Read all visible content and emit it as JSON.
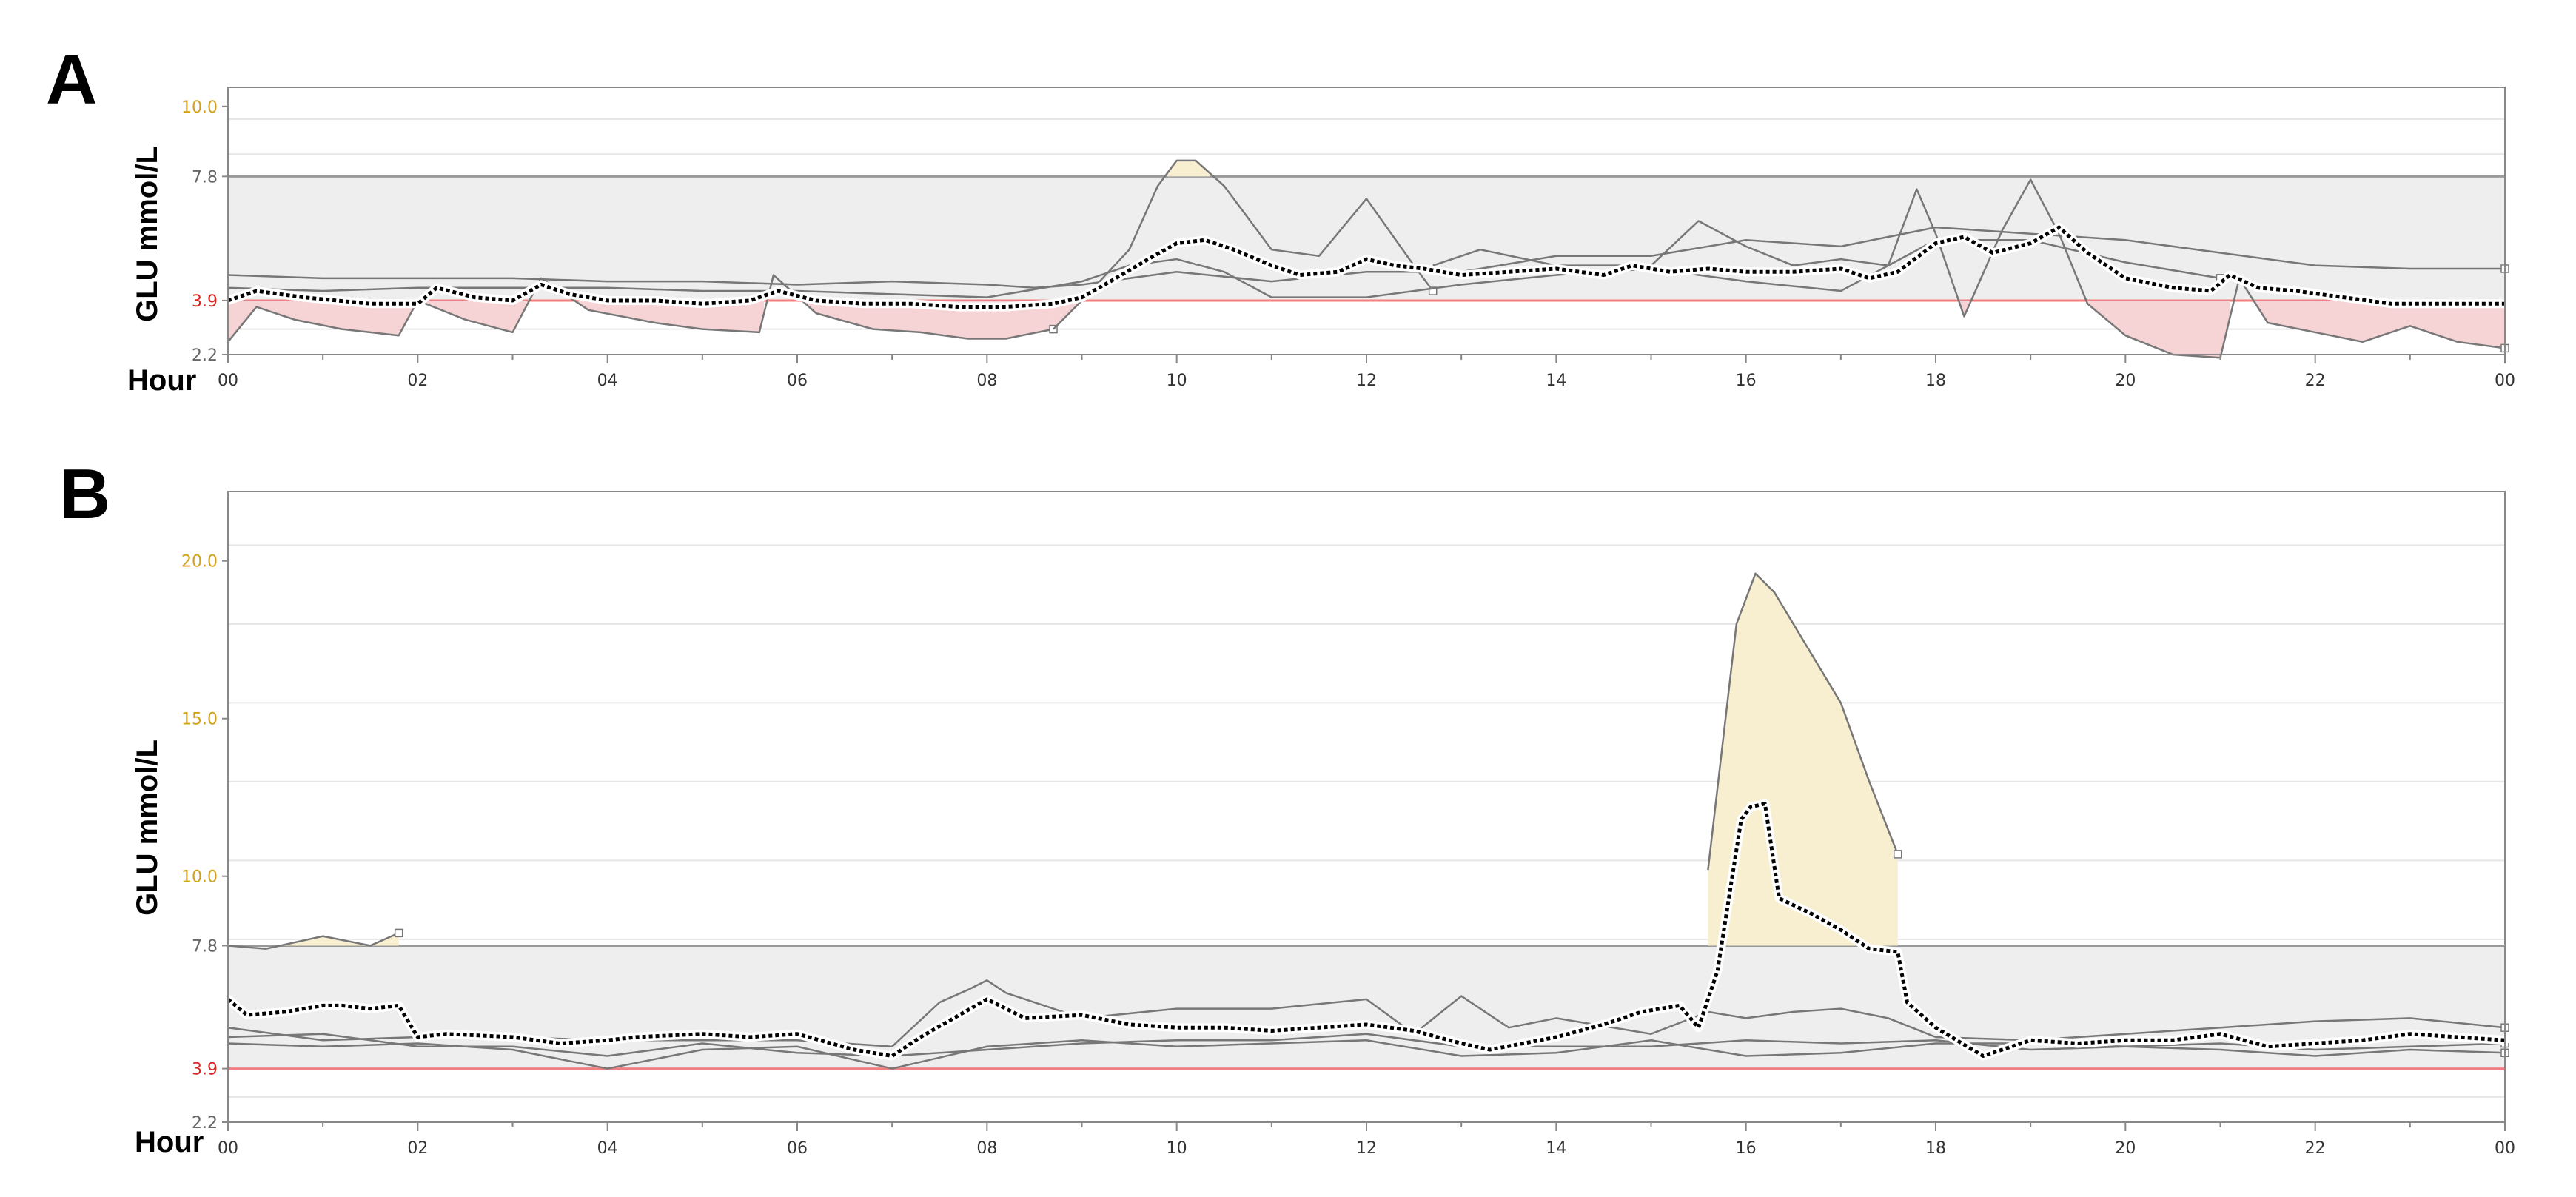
{
  "panels": [
    {
      "letter": "A",
      "ylabel": "GLU mmol/L",
      "xlabel": "Hour"
    },
    {
      "letter": "B",
      "ylabel": "GLU mmol/L",
      "xlabel": "Hour"
    }
  ],
  "colors": {
    "target_band": "#eeeeee",
    "target_line": "#999999",
    "low_line": "#f08080",
    "low_fill": "#f6d3d5",
    "high_fill": "#f8eed0",
    "high_outline": "#c8a96a",
    "high_tick_label": "#d4a017",
    "low_tick_label": "#dd2222",
    "trace": "#777777",
    "median": "#000000",
    "grid": "#e6e6e6"
  },
  "chart_data": [
    {
      "type": "line",
      "title": "",
      "xlabel": "Hour",
      "ylabel": "GLU mmol/L",
      "x_tick_labels": [
        "00",
        "02",
        "04",
        "06",
        "08",
        "10",
        "12",
        "14",
        "16",
        "18",
        "20",
        "22",
        "00"
      ],
      "x_range_hours": [
        0,
        24
      ],
      "y_ticks": [
        2.2,
        3.9,
        7.8,
        10.0
      ],
      "y_tick_colors": [
        "normal",
        "low",
        "normal",
        "high"
      ],
      "ylim": [
        2.2,
        10.6
      ],
      "target_range": [
        3.9,
        7.8
      ],
      "series": [
        {
          "role": "trace",
          "x": [
            0,
            0.3,
            0.7,
            1.2,
            1.8,
            2.0,
            2.5,
            3.0,
            3.3,
            3.8,
            4.5,
            5.0,
            5.6,
            5.75,
            6.2,
            6.8,
            7.3,
            7.8,
            8.2,
            8.7
          ],
          "y": [
            2.6,
            3.7,
            3.3,
            3.0,
            2.8,
            3.9,
            3.3,
            2.9,
            4.6,
            3.6,
            3.2,
            3.0,
            2.9,
            4.7,
            3.5,
            3.0,
            2.9,
            2.7,
            2.7,
            3.0
          ]
        },
        {
          "role": "trace",
          "x": [
            8.7,
            9.0,
            9.5,
            9.8,
            10.0,
            10.2,
            10.5,
            11.0,
            11.5,
            12.0,
            12.5,
            12.7
          ],
          "y": [
            3.0,
            3.9,
            5.5,
            7.5,
            8.3,
            8.3,
            7.5,
            5.5,
            5.3,
            7.1,
            5.0,
            4.2
          ]
        },
        {
          "role": "trace",
          "x": [
            12.7,
            13.2,
            14.0,
            15.0,
            15.5,
            16.0,
            16.5,
            17.0,
            17.5,
            17.8,
            18.0,
            18.3,
            18.7,
            19.0,
            19.3,
            19.6,
            20.0,
            20.5,
            21.0,
            21.2,
            21.5,
            22.0,
            22.5,
            23.0,
            23.5,
            24.0
          ],
          "y": [
            5.0,
            5.5,
            5.0,
            5.0,
            6.4,
            5.6,
            5.0,
            5.2,
            5.0,
            7.4,
            6.0,
            3.4,
            6.1,
            7.7,
            6.0,
            3.8,
            2.8,
            2.2,
            2.1,
            4.6,
            3.2,
            2.9,
            2.6,
            3.1,
            2.6,
            2.4
          ]
        },
        {
          "role": "trace",
          "x": [
            0,
            1.0,
            2.0,
            3.0,
            4.0,
            5.0,
            6.0,
            7.0,
            8.0,
            8.5,
            9.0,
            10.0,
            11.0,
            12.0,
            13.0,
            14.0,
            15.0,
            16.0,
            17.0,
            18.0,
            19.0,
            20.0,
            21.0,
            22.0,
            23.0,
            24.0
          ],
          "y": [
            4.7,
            4.6,
            4.6,
            4.6,
            4.5,
            4.5,
            4.4,
            4.5,
            4.4,
            4.3,
            4.4,
            4.8,
            4.5,
            4.8,
            4.8,
            5.3,
            5.3,
            5.8,
            5.6,
            6.2,
            6.0,
            5.8,
            5.4,
            5.0,
            4.9,
            4.9
          ]
        },
        {
          "role": "trace",
          "x": [
            0,
            1.0,
            2.0,
            3.0,
            4.0,
            5.0,
            6.0,
            7.0,
            8.0,
            9.0,
            9.5,
            10.0,
            10.5,
            11.0,
            12.0,
            13.0,
            14.0,
            15.0,
            16.0,
            17.0,
            18.0,
            19.0,
            20.0,
            21.0
          ],
          "y": [
            4.3,
            4.2,
            4.3,
            4.3,
            4.3,
            4.2,
            4.2,
            4.1,
            4.0,
            4.5,
            5.0,
            5.2,
            4.8,
            4.0,
            4.0,
            4.4,
            4.7,
            4.9,
            4.5,
            4.2,
            5.8,
            5.8,
            5.1,
            4.6
          ]
        },
        {
          "role": "median",
          "x": [
            0,
            0.3,
            0.8,
            1.5,
            2.0,
            2.2,
            2.6,
            3.0,
            3.3,
            3.6,
            4.0,
            4.5,
            5.0,
            5.5,
            5.8,
            6.2,
            6.7,
            7.2,
            7.7,
            8.2,
            8.7,
            9.0,
            9.3,
            9.7,
            10.0,
            10.3,
            10.6,
            11.0,
            11.3,
            11.7,
            12.0,
            12.3,
            12.6,
            13.0,
            13.5,
            14.0,
            14.5,
            14.8,
            15.2,
            15.6,
            16.0,
            16.5,
            17.0,
            17.3,
            17.6,
            18.0,
            18.3,
            18.6,
            19.0,
            19.3,
            19.6,
            20.0,
            20.5,
            20.9,
            21.1,
            21.4,
            21.8,
            22.3,
            22.8,
            23.2,
            23.6,
            24.0
          ],
          "y": [
            3.9,
            4.2,
            4.0,
            3.8,
            3.8,
            4.3,
            4.0,
            3.9,
            4.4,
            4.1,
            3.9,
            3.9,
            3.8,
            3.9,
            4.2,
            3.9,
            3.8,
            3.8,
            3.7,
            3.7,
            3.8,
            4.0,
            4.5,
            5.2,
            5.7,
            5.8,
            5.5,
            5.0,
            4.7,
            4.8,
            5.2,
            5.0,
            4.9,
            4.7,
            4.8,
            4.9,
            4.7,
            5.0,
            4.8,
            4.9,
            4.8,
            4.8,
            4.9,
            4.6,
            4.8,
            5.7,
            5.9,
            5.4,
            5.7,
            6.2,
            5.4,
            4.6,
            4.3,
            4.2,
            4.7,
            4.3,
            4.2,
            4.0,
            3.8,
            3.8,
            3.8,
            3.8
          ]
        }
      ]
    },
    {
      "type": "line",
      "title": "",
      "xlabel": "Hour",
      "ylabel": "GLU mmol/L",
      "x_tick_labels": [
        "00",
        "02",
        "04",
        "06",
        "08",
        "10",
        "12",
        "14",
        "16",
        "18",
        "20",
        "22",
        "00"
      ],
      "x_range_hours": [
        0,
        24
      ],
      "y_ticks": [
        2.2,
        3.9,
        7.8,
        10.0,
        15.0,
        20.0
      ],
      "y_tick_colors": [
        "normal",
        "low",
        "normal",
        "high",
        "high",
        "high"
      ],
      "ylim": [
        2.2,
        22.2
      ],
      "target_range": [
        3.9,
        7.8
      ],
      "series": [
        {
          "role": "trace",
          "x": [
            0,
            0.4,
            1.0,
            1.5,
            1.8
          ],
          "y": [
            7.8,
            7.7,
            8.1,
            7.8,
            8.2
          ]
        },
        {
          "role": "trace",
          "x": [
            15.6,
            15.9,
            16.1,
            16.3,
            16.6,
            17.0,
            17.3,
            17.6
          ],
          "y": [
            10.2,
            18.0,
            19.6,
            19.0,
            17.5,
            15.5,
            13.0,
            10.7
          ]
        },
        {
          "role": "trace",
          "x": [
            0,
            1.0,
            2.0,
            3.0,
            4.0,
            5.0,
            6.0,
            7.0,
            7.5,
            7.8,
            8.0,
            8.2,
            8.5,
            9.0,
            10.0,
            11.0,
            12.0,
            12.5,
            13.0,
            13.5,
            14.0,
            15.0,
            15.6,
            16.0,
            16.5,
            17.0,
            17.5,
            18.0,
            19.0,
            20.0,
            21.0,
            22.0,
            23.0,
            24.0
          ],
          "y": [
            5.2,
            4.8,
            4.9,
            4.9,
            4.8,
            4.8,
            4.8,
            4.6,
            6.0,
            6.4,
            6.7,
            6.3,
            6.0,
            5.5,
            5.8,
            5.8,
            6.1,
            5.0,
            6.2,
            5.2,
            5.5,
            5.0,
            5.7,
            5.5,
            5.7,
            5.8,
            5.5,
            4.9,
            4.8,
            5.0,
            5.2,
            5.4,
            5.5,
            5.2
          ]
        },
        {
          "role": "trace",
          "x": [
            0,
            1.0,
            2.0,
            3.0,
            4.0,
            5.0,
            6.0,
            7.0,
            8.0,
            9.0,
            10.0,
            11.0,
            12.0,
            13.0,
            14.0,
            15.0,
            16.0,
            17.0,
            18.0,
            19.0,
            20.0,
            21.0,
            22.0,
            23.0,
            24.0
          ],
          "y": [
            4.9,
            5.0,
            4.6,
            4.6,
            4.3,
            4.7,
            4.4,
            4.3,
            4.5,
            4.7,
            4.8,
            4.8,
            5.0,
            4.6,
            4.6,
            4.6,
            4.8,
            4.7,
            4.8,
            4.5,
            4.6,
            4.7,
            4.5,
            4.6,
            4.7
          ]
        },
        {
          "role": "trace",
          "x": [
            0,
            1.0,
            2.0,
            3.0,
            4.0,
            5.0,
            6.0,
            7.0,
            8.0,
            9.0,
            10.0,
            11.0,
            12.0,
            13.0,
            14.0,
            15.0,
            16.0,
            17.0,
            18.0,
            19.0,
            20.0,
            21.0,
            22.0,
            23.0,
            24.0
          ],
          "y": [
            4.7,
            4.6,
            4.7,
            4.5,
            3.9,
            4.5,
            4.6,
            3.9,
            4.6,
            4.8,
            4.6,
            4.7,
            4.8,
            4.3,
            4.4,
            4.8,
            4.3,
            4.4,
            4.7,
            4.7,
            4.6,
            4.5,
            4.3,
            4.5,
            4.4
          ]
        },
        {
          "role": "median",
          "x": [
            0,
            0.2,
            0.6,
            1.0,
            1.2,
            1.5,
            1.8,
            2.0,
            2.3,
            3.0,
            3.5,
            4.0,
            4.3,
            5.0,
            5.5,
            6.0,
            6.6,
            7.0,
            7.3,
            8.0,
            8.4,
            9.0,
            9.5,
            10.0,
            10.5,
            11.0,
            11.5,
            12.0,
            12.5,
            13.0,
            13.3,
            14.0,
            14.5,
            14.9,
            15.3,
            15.5,
            15.7,
            15.95,
            16.05,
            16.2,
            16.35,
            16.7,
            17.0,
            17.3,
            17.6,
            17.7,
            18.0,
            18.5,
            19.0,
            19.5,
            20.0,
            20.5,
            21.0,
            21.5,
            22.0,
            22.5,
            23.0,
            23.5,
            24.0
          ],
          "y": [
            6.1,
            5.6,
            5.7,
            5.9,
            5.9,
            5.8,
            5.9,
            4.9,
            5.0,
            4.9,
            4.7,
            4.8,
            4.9,
            5.0,
            4.9,
            5.0,
            4.5,
            4.3,
            4.9,
            6.1,
            5.5,
            5.6,
            5.3,
            5.2,
            5.2,
            5.1,
            5.2,
            5.3,
            5.1,
            4.7,
            4.5,
            4.9,
            5.3,
            5.7,
            5.9,
            5.2,
            7.0,
            11.8,
            12.2,
            12.3,
            9.3,
            8.8,
            8.3,
            7.7,
            7.6,
            6.0,
            5.2,
            4.3,
            4.8,
            4.7,
            4.8,
            4.8,
            5.0,
            4.6,
            4.7,
            4.8,
            5.0,
            4.9,
            4.8
          ]
        }
      ]
    }
  ]
}
